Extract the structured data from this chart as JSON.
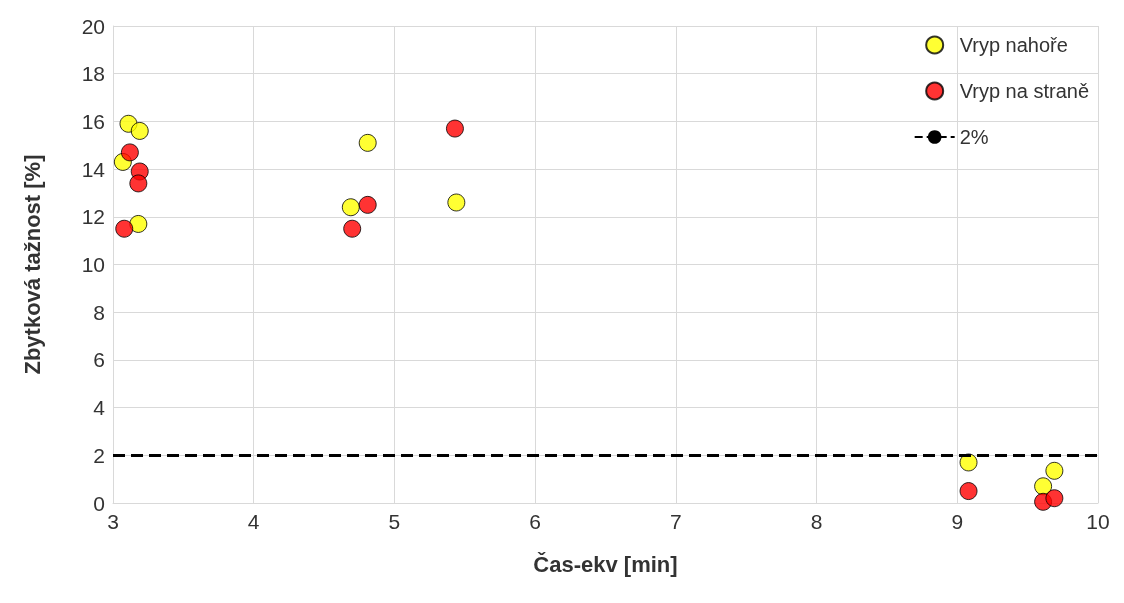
{
  "chart_data": {
    "type": "scatter",
    "xlabel": "Čas-ekv [min]",
    "ylabel": "Zbytková tažnost [%]",
    "xlim": [
      3,
      10
    ],
    "xticks": [
      3,
      4,
      5,
      6,
      7,
      8,
      9,
      10
    ],
    "ylim": [
      0,
      20
    ],
    "yticks": [
      0,
      2,
      4,
      6,
      8,
      10,
      12,
      14,
      16,
      18,
      20
    ],
    "grid": true,
    "legend": "top right",
    "marker": "circle",
    "series": [
      {
        "name": "Vryp nahoře",
        "color": "#ffff00",
        "x": [
          3.07,
          3.11,
          3.19,
          3.18,
          4.69,
          4.81,
          5.44,
          9.08,
          9.61,
          9.69
        ],
        "values": [
          14.3,
          15.9,
          15.6,
          11.7,
          12.4,
          15.1,
          12.6,
          1.7,
          0.7,
          1.35
        ]
      },
      {
        "name": "Vryp na straně",
        "color": "#ff0000",
        "x": [
          3.08,
          3.12,
          3.19,
          3.18,
          4.7,
          4.81,
          5.43,
          9.08,
          9.61,
          9.69
        ],
        "values": [
          11.5,
          14.7,
          13.9,
          13.4,
          11.5,
          12.5,
          15.7,
          0.5,
          0.05,
          0.2
        ]
      }
    ],
    "ref_lines": [
      {
        "axis": "y",
        "value": 2,
        "label": "2%",
        "color": "#000000",
        "line_style": "dashed"
      }
    ]
  }
}
